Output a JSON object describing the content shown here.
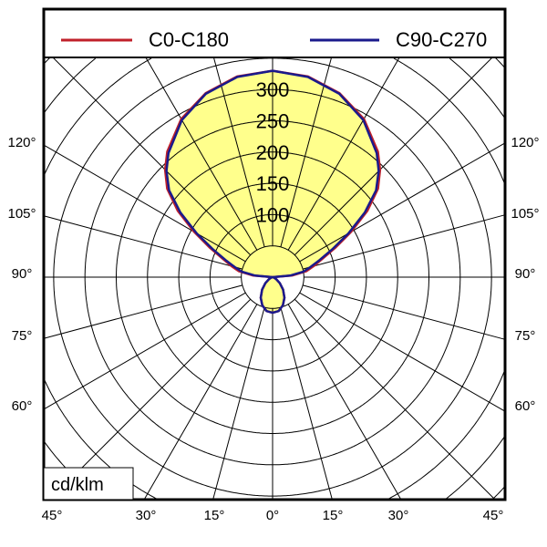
{
  "chart_data": {
    "type": "polar",
    "unit_label": "cd/klm",
    "radial_ticks": [
      100,
      150,
      200,
      250,
      300
    ],
    "ring_step": 50,
    "ring_max": 500,
    "angle_step": 15,
    "bottom_tick_labels": [
      "45°",
      "30°",
      "15°",
      "0°",
      "15°",
      "30°",
      "45°"
    ],
    "left_tick_labels": [
      "120°",
      "105°",
      "90°",
      "75°",
      "60°"
    ],
    "right_tick_labels": [
      "120°",
      "105°",
      "90°",
      "75°",
      "60°"
    ],
    "fill_color": "#ffff8c",
    "grid": true,
    "legend_position": "top",
    "gamma": [
      0,
      10,
      20,
      30,
      40,
      50,
      60,
      70,
      80,
      90,
      95,
      100,
      105,
      110,
      115,
      120,
      125,
      130,
      135,
      140,
      150,
      160,
      170,
      180
    ],
    "series": [
      {
        "name": "C0-C180",
        "color": "#c0202a",
        "values": [
          57,
          55,
          48,
          38,
          26,
          15,
          7,
          3,
          1,
          0,
          32,
          55,
          68,
          84,
          110,
          145,
          185,
          220,
          243,
          262,
          292,
          313,
          326,
          330
        ]
      },
      {
        "name": "C90-C270",
        "color": "#1a1a8c",
        "values": [
          57,
          55,
          48,
          38,
          26,
          15,
          7,
          3,
          1,
          0,
          28,
          50,
          63,
          80,
          105,
          140,
          180,
          216,
          240,
          259,
          290,
          312,
          325,
          330
        ]
      }
    ]
  }
}
